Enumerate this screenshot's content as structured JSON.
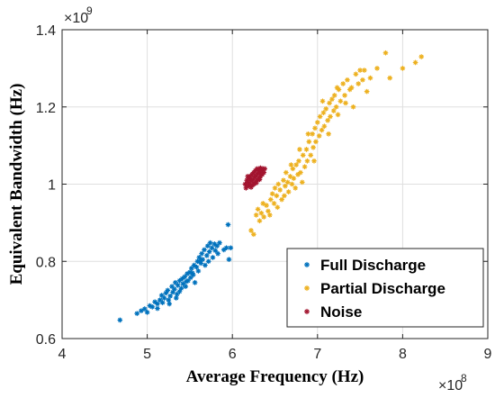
{
  "chart_data": {
    "type": "scatter",
    "xlabel": "Average Frequency (Hz)",
    "ylabel": "Equivalent Bandwidth (Hz)",
    "x_exponent_label": "×10",
    "x_exponent_power": "8",
    "y_exponent_label": "×10",
    "y_exponent_power": "9",
    "xlim": [
      4,
      9
    ],
    "ylim": [
      0.6,
      1.4
    ],
    "x_ticks": [
      4,
      5,
      6,
      7,
      8,
      9
    ],
    "y_ticks": [
      0.6,
      0.8,
      1,
      1.2,
      1.4
    ],
    "x_tick_labels": [
      "4",
      "5",
      "6",
      "7",
      "8",
      "9"
    ],
    "y_tick_labels": [
      "0.6",
      "0.8",
      "1",
      "1.2",
      "1.4"
    ],
    "grid": true,
    "legend_position": "bottom-right",
    "series": [
      {
        "name": "Full Discharge",
        "color": "#0072BD",
        "marker": "asterisk",
        "points": [
          [
            4.68,
            0.648
          ],
          [
            4.88,
            0.665
          ],
          [
            4.93,
            0.672
          ],
          [
            4.97,
            0.677
          ],
          [
            5.0,
            0.668
          ],
          [
            5.03,
            0.685
          ],
          [
            5.06,
            0.682
          ],
          [
            5.09,
            0.695
          ],
          [
            5.12,
            0.69
          ],
          [
            5.15,
            0.7
          ],
          [
            5.17,
            0.712
          ],
          [
            5.18,
            0.693
          ],
          [
            5.2,
            0.705
          ],
          [
            5.22,
            0.718
          ],
          [
            5.24,
            0.725
          ],
          [
            5.25,
            0.7
          ],
          [
            5.27,
            0.71
          ],
          [
            5.29,
            0.735
          ],
          [
            5.3,
            0.72
          ],
          [
            5.32,
            0.728
          ],
          [
            5.33,
            0.745
          ],
          [
            5.35,
            0.715
          ],
          [
            5.36,
            0.738
          ],
          [
            5.38,
            0.75
          ],
          [
            5.4,
            0.73
          ],
          [
            5.41,
            0.755
          ],
          [
            5.42,
            0.742
          ],
          [
            5.44,
            0.76
          ],
          [
            5.45,
            0.735
          ],
          [
            5.47,
            0.768
          ],
          [
            5.48,
            0.75
          ],
          [
            5.5,
            0.772
          ],
          [
            5.51,
            0.758
          ],
          [
            5.52,
            0.782
          ],
          [
            5.54,
            0.765
          ],
          [
            5.55,
            0.79
          ],
          [
            5.56,
            0.745
          ],
          [
            5.58,
            0.785
          ],
          [
            5.59,
            0.8
          ],
          [
            5.6,
            0.775
          ],
          [
            5.61,
            0.81
          ],
          [
            5.63,
            0.795
          ],
          [
            5.64,
            0.82
          ],
          [
            5.65,
            0.805
          ],
          [
            5.67,
            0.83
          ],
          [
            5.68,
            0.79
          ],
          [
            5.7,
            0.815
          ],
          [
            5.71,
            0.84
          ],
          [
            5.73,
            0.825
          ],
          [
            5.74,
            0.848
          ],
          [
            5.76,
            0.835
          ],
          [
            5.77,
            0.81
          ],
          [
            5.79,
            0.845
          ],
          [
            5.8,
            0.828
          ],
          [
            5.82,
            0.84
          ],
          [
            5.83,
            0.82
          ],
          [
            5.85,
            0.848
          ],
          [
            5.9,
            0.83
          ],
          [
            5.93,
            0.835
          ],
          [
            5.95,
            0.895
          ],
          [
            5.96,
            0.805
          ],
          [
            5.98,
            0.835
          ],
          [
            5.12,
            0.678
          ],
          [
            5.26,
            0.69
          ],
          [
            5.38,
            0.722
          ],
          [
            5.46,
            0.748
          ],
          [
            5.53,
            0.77
          ],
          [
            5.62,
            0.8
          ],
          [
            5.72,
            0.8
          ],
          [
            5.34,
            0.705
          ]
        ]
      },
      {
        "name": "Partial Discharge",
        "color": "#EDB120",
        "marker": "asterisk",
        "points": [
          [
            6.22,
            0.88
          ],
          [
            6.25,
            0.87
          ],
          [
            6.28,
            0.92
          ],
          [
            6.3,
            0.935
          ],
          [
            6.32,
            0.905
          ],
          [
            6.34,
            0.925
          ],
          [
            6.37,
            0.915
          ],
          [
            6.4,
            0.945
          ],
          [
            6.42,
            0.93
          ],
          [
            6.45,
            0.96
          ],
          [
            6.47,
            0.975
          ],
          [
            6.49,
            0.95
          ],
          [
            6.5,
            0.99
          ],
          [
            6.52,
            0.97
          ],
          [
            6.54,
            1.0
          ],
          [
            6.56,
            0.985
          ],
          [
            6.58,
            0.96
          ],
          [
            6.6,
            1.01
          ],
          [
            6.62,
            0.995
          ],
          [
            6.63,
            1.03
          ],
          [
            6.65,
            1.005
          ],
          [
            6.66,
            0.98
          ],
          [
            6.68,
            1.02
          ],
          [
            6.7,
            1.0
          ],
          [
            6.71,
            1.04
          ],
          [
            6.72,
            1.015
          ],
          [
            6.74,
            0.99
          ],
          [
            6.75,
            1.05
          ],
          [
            6.77,
            1.025
          ],
          [
            6.78,
            1.06
          ],
          [
            6.8,
            1.03
          ],
          [
            6.82,
            1.005
          ],
          [
            6.83,
            1.075
          ],
          [
            6.85,
            1.045
          ],
          [
            6.87,
            1.09
          ],
          [
            6.88,
            1.06
          ],
          [
            6.9,
            1.11
          ],
          [
            6.92,
            1.075
          ],
          [
            6.94,
            1.13
          ],
          [
            6.95,
            1.095
          ],
          [
            6.97,
            1.145
          ],
          [
            6.98,
            1.11
          ],
          [
            7.0,
            1.16
          ],
          [
            7.02,
            1.125
          ],
          [
            7.03,
            1.175
          ],
          [
            7.05,
            1.14
          ],
          [
            7.07,
            1.185
          ],
          [
            7.08,
            1.15
          ],
          [
            7.1,
            1.195
          ],
          [
            7.12,
            1.165
          ],
          [
            7.14,
            1.21
          ],
          [
            7.15,
            1.175
          ],
          [
            7.17,
            1.22
          ],
          [
            7.19,
            1.19
          ],
          [
            7.2,
            1.23
          ],
          [
            7.22,
            1.2
          ],
          [
            7.24,
            1.18
          ],
          [
            7.25,
            1.245
          ],
          [
            7.27,
            1.215
          ],
          [
            7.3,
            1.26
          ],
          [
            7.32,
            1.23
          ],
          [
            7.35,
            1.27
          ],
          [
            7.38,
            1.245
          ],
          [
            7.4,
            1.25
          ],
          [
            7.42,
            1.2
          ],
          [
            7.45,
            1.285
          ],
          [
            7.48,
            1.26
          ],
          [
            7.5,
            1.295
          ],
          [
            7.53,
            1.27
          ],
          [
            7.55,
            1.295
          ],
          [
            7.58,
            1.24
          ],
          [
            7.62,
            1.275
          ],
          [
            7.7,
            1.3
          ],
          [
            7.8,
            1.34
          ],
          [
            7.85,
            1.275
          ],
          [
            8.0,
            1.3
          ],
          [
            8.15,
            1.315
          ],
          [
            8.22,
            1.33
          ],
          [
            6.36,
            0.95
          ],
          [
            6.53,
            0.94
          ],
          [
            6.61,
            0.97
          ],
          [
            6.69,
            1.05
          ],
          [
            6.79,
            1.09
          ],
          [
            6.89,
            1.13
          ],
          [
            6.96,
            1.06
          ],
          [
            7.06,
            1.215
          ],
          [
            7.13,
            1.13
          ],
          [
            7.23,
            1.25
          ],
          [
            7.33,
            1.21
          ],
          [
            6.44,
            0.92
          ]
        ]
      },
      {
        "name": "Noise",
        "color": "#A2142F",
        "marker": "asterisk",
        "points": [
          [
            6.15,
            1.0
          ],
          [
            6.16,
            0.99
          ],
          [
            6.17,
            1.01
          ],
          [
            6.18,
            1.005
          ],
          [
            6.19,
            0.995
          ],
          [
            6.2,
            1.015
          ],
          [
            6.2,
            1.0
          ],
          [
            6.21,
            1.02
          ],
          [
            6.22,
            1.008
          ],
          [
            6.22,
            0.992
          ],
          [
            6.23,
            1.025
          ],
          [
            6.24,
            1.012
          ],
          [
            6.25,
            1.03
          ],
          [
            6.25,
            1.0
          ],
          [
            6.26,
            1.018
          ],
          [
            6.27,
            1.035
          ],
          [
            6.27,
            1.005
          ],
          [
            6.28,
            1.022
          ],
          [
            6.29,
            1.04
          ],
          [
            6.29,
            1.01
          ],
          [
            6.3,
            1.028
          ],
          [
            6.31,
            1.038
          ],
          [
            6.31,
            1.015
          ],
          [
            6.32,
            1.03
          ],
          [
            6.33,
            1.042
          ],
          [
            6.33,
            1.02
          ],
          [
            6.34,
            1.035
          ],
          [
            6.35,
            1.025
          ],
          [
            6.36,
            1.04
          ],
          [
            6.37,
            1.03
          ],
          [
            6.38,
            1.04
          ],
          [
            6.18,
            1.02
          ],
          [
            6.24,
            0.998
          ],
          [
            6.28,
            1.003
          ],
          [
            6.32,
            1.012
          ]
        ]
      }
    ]
  }
}
